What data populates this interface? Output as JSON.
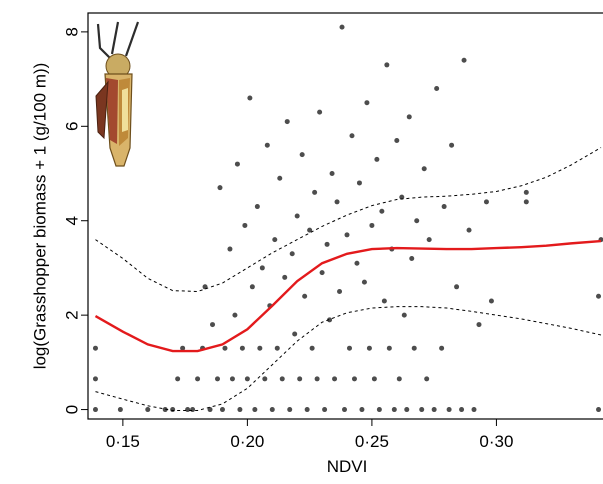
{
  "chart_data": {
    "type": "scatter",
    "xlabel": "NDVI",
    "ylabel": "log(Grasshopper biomass + 1 (g/100 m))",
    "xlim": [
      0.136,
      0.344
    ],
    "ylim": [
      -0.2,
      8.4
    ],
    "x_ticks": [
      0.15,
      0.2,
      0.25,
      0.3
    ],
    "x_tick_labels": [
      "0·15",
      "0·20",
      "0·25",
      "0·30"
    ],
    "y_ticks": [
      0,
      2,
      4,
      6,
      8
    ],
    "y_tick_labels": [
      "0",
      "2",
      "4",
      "6",
      "8"
    ],
    "grid": false,
    "point_color": "#4d4d4d",
    "fit_color": "#e31a1c",
    "band_color": "#000000",
    "icon": "grasshopper-icon",
    "series": [
      {
        "kind": "points",
        "points": [
          [
            0.139,
            0.0
          ],
          [
            0.139,
            0.65
          ],
          [
            0.139,
            1.3
          ],
          [
            0.149,
            0.0
          ],
          [
            0.16,
            0.0
          ],
          [
            0.167,
            0.0
          ],
          [
            0.17,
            0.0
          ],
          [
            0.172,
            0.65
          ],
          [
            0.174,
            1.3
          ],
          [
            0.176,
            0.0
          ],
          [
            0.178,
            0.0
          ],
          [
            0.18,
            0.65
          ],
          [
            0.182,
            1.3
          ],
          [
            0.183,
            2.6
          ],
          [
            0.185,
            0.0
          ],
          [
            0.186,
            1.8
          ],
          [
            0.188,
            0.65
          ],
          [
            0.189,
            4.7
          ],
          [
            0.19,
            0.0
          ],
          [
            0.191,
            1.3
          ],
          [
            0.193,
            3.4
          ],
          [
            0.194,
            0.65
          ],
          [
            0.195,
            2.0
          ],
          [
            0.196,
            5.2
          ],
          [
            0.197,
            0.0
          ],
          [
            0.198,
            1.3
          ],
          [
            0.199,
            3.9
          ],
          [
            0.2,
            0.65
          ],
          [
            0.201,
            6.6
          ],
          [
            0.202,
            2.6
          ],
          [
            0.203,
            0.0
          ],
          [
            0.204,
            4.3
          ],
          [
            0.205,
            1.3
          ],
          [
            0.206,
            3.0
          ],
          [
            0.207,
            0.65
          ],
          [
            0.208,
            5.6
          ],
          [
            0.209,
            2.2
          ],
          [
            0.21,
            0.0
          ],
          [
            0.211,
            3.6
          ],
          [
            0.212,
            1.3
          ],
          [
            0.213,
            4.9
          ],
          [
            0.214,
            0.65
          ],
          [
            0.215,
            2.8
          ],
          [
            0.216,
            6.1
          ],
          [
            0.217,
            0.0
          ],
          [
            0.218,
            3.3
          ],
          [
            0.219,
            1.6
          ],
          [
            0.22,
            4.1
          ],
          [
            0.221,
            0.65
          ],
          [
            0.222,
            5.4
          ],
          [
            0.223,
            2.4
          ],
          [
            0.224,
            0.0
          ],
          [
            0.225,
            3.8
          ],
          [
            0.226,
            1.3
          ],
          [
            0.227,
            4.6
          ],
          [
            0.228,
            0.65
          ],
          [
            0.229,
            6.3
          ],
          [
            0.23,
            2.9
          ],
          [
            0.231,
            0.0
          ],
          [
            0.232,
            3.5
          ],
          [
            0.233,
            1.9
          ],
          [
            0.234,
            5.0
          ],
          [
            0.235,
            0.65
          ],
          [
            0.236,
            4.4
          ],
          [
            0.237,
            2.5
          ],
          [
            0.238,
            8.1
          ],
          [
            0.239,
            0.0
          ],
          [
            0.24,
            3.7
          ],
          [
            0.241,
            1.3
          ],
          [
            0.242,
            5.8
          ],
          [
            0.243,
            0.65
          ],
          [
            0.244,
            3.1
          ],
          [
            0.245,
            4.8
          ],
          [
            0.246,
            0.0
          ],
          [
            0.247,
            2.7
          ],
          [
            0.248,
            6.5
          ],
          [
            0.249,
            1.3
          ],
          [
            0.25,
            3.9
          ],
          [
            0.251,
            0.65
          ],
          [
            0.252,
            5.3
          ],
          [
            0.253,
            0.0
          ],
          [
            0.254,
            4.2
          ],
          [
            0.255,
            2.3
          ],
          [
            0.256,
            7.3
          ],
          [
            0.257,
            1.3
          ],
          [
            0.258,
            3.4
          ],
          [
            0.259,
            0.0
          ],
          [
            0.26,
            5.7
          ],
          [
            0.261,
            0.65
          ],
          [
            0.262,
            4.5
          ],
          [
            0.263,
            2.0
          ],
          [
            0.264,
            0.0
          ],
          [
            0.265,
            6.2
          ],
          [
            0.266,
            3.2
          ],
          [
            0.267,
            1.3
          ],
          [
            0.268,
            4.0
          ],
          [
            0.27,
            0.0
          ],
          [
            0.271,
            5.1
          ],
          [
            0.272,
            0.65
          ],
          [
            0.273,
            3.6
          ],
          [
            0.275,
            0.0
          ],
          [
            0.276,
            6.8
          ],
          [
            0.278,
            1.3
          ],
          [
            0.279,
            4.3
          ],
          [
            0.281,
            0.0
          ],
          [
            0.282,
            5.6
          ],
          [
            0.284,
            2.6
          ],
          [
            0.286,
            0.0
          ],
          [
            0.287,
            7.4
          ],
          [
            0.289,
            3.8
          ],
          [
            0.291,
            0.0
          ],
          [
            0.293,
            1.8
          ],
          [
            0.296,
            4.4
          ],
          [
            0.298,
            2.3
          ],
          [
            0.312,
            4.4
          ],
          [
            0.312,
            4.6
          ],
          [
            0.341,
            0.0
          ],
          [
            0.341,
            2.4
          ],
          [
            0.342,
            3.6
          ]
        ]
      },
      {
        "kind": "fit",
        "points": [
          [
            0.139,
            1.98
          ],
          [
            0.15,
            1.65
          ],
          [
            0.16,
            1.38
          ],
          [
            0.17,
            1.24
          ],
          [
            0.18,
            1.24
          ],
          [
            0.19,
            1.38
          ],
          [
            0.2,
            1.7
          ],
          [
            0.21,
            2.2
          ],
          [
            0.22,
            2.72
          ],
          [
            0.23,
            3.1
          ],
          [
            0.24,
            3.3
          ],
          [
            0.25,
            3.4
          ],
          [
            0.26,
            3.42
          ],
          [
            0.27,
            3.41
          ],
          [
            0.28,
            3.4
          ],
          [
            0.29,
            3.4
          ],
          [
            0.3,
            3.42
          ],
          [
            0.31,
            3.44
          ],
          [
            0.32,
            3.47
          ],
          [
            0.33,
            3.52
          ],
          [
            0.342,
            3.57
          ]
        ]
      },
      {
        "kind": "upper-band",
        "points": [
          [
            0.139,
            3.6
          ],
          [
            0.15,
            3.2
          ],
          [
            0.16,
            2.78
          ],
          [
            0.17,
            2.52
          ],
          [
            0.18,
            2.5
          ],
          [
            0.19,
            2.68
          ],
          [
            0.2,
            3.0
          ],
          [
            0.21,
            3.32
          ],
          [
            0.22,
            3.6
          ],
          [
            0.23,
            3.88
          ],
          [
            0.24,
            4.12
          ],
          [
            0.25,
            4.32
          ],
          [
            0.26,
            4.45
          ],
          [
            0.27,
            4.5
          ],
          [
            0.28,
            4.52
          ],
          [
            0.29,
            4.56
          ],
          [
            0.3,
            4.62
          ],
          [
            0.31,
            4.74
          ],
          [
            0.32,
            4.92
          ],
          [
            0.33,
            5.18
          ],
          [
            0.342,
            5.55
          ]
        ]
      },
      {
        "kind": "lower-band",
        "points": [
          [
            0.139,
            0.38
          ],
          [
            0.15,
            0.22
          ],
          [
            0.16,
            0.08
          ],
          [
            0.17,
            -0.02
          ],
          [
            0.18,
            -0.02
          ],
          [
            0.19,
            0.12
          ],
          [
            0.2,
            0.45
          ],
          [
            0.21,
            0.95
          ],
          [
            0.22,
            1.45
          ],
          [
            0.23,
            1.85
          ],
          [
            0.24,
            2.05
          ],
          [
            0.25,
            2.15
          ],
          [
            0.26,
            2.18
          ],
          [
            0.27,
            2.18
          ],
          [
            0.28,
            2.15
          ],
          [
            0.29,
            2.08
          ],
          [
            0.3,
            2.0
          ],
          [
            0.31,
            1.92
          ],
          [
            0.32,
            1.82
          ],
          [
            0.33,
            1.72
          ],
          [
            0.342,
            1.58
          ]
        ]
      }
    ]
  }
}
